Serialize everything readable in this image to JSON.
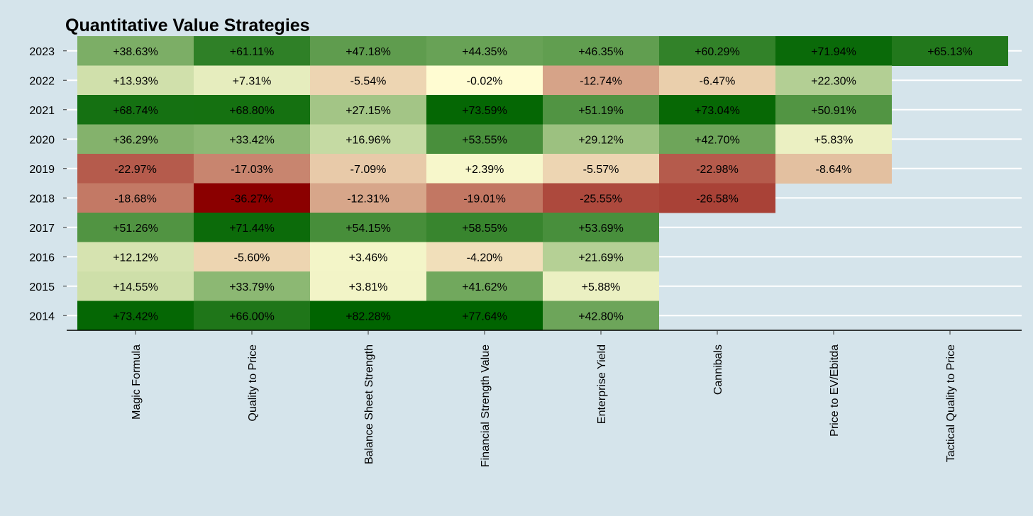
{
  "chart_data": {
    "type": "heatmap",
    "title": "Quantitative Value Strategies",
    "xlabel": "",
    "ylabel": "",
    "grid": true,
    "legend": "none",
    "categories": [
      "Magic Formula",
      "Quality to Price",
      "Balance Sheet Strength",
      "Financial Strength Value",
      "Enterprise Yield",
      "Cannibals",
      "Price to EV/Ebitda",
      "Tactical Quality to Price"
    ],
    "years": [
      "2023",
      "2022",
      "2021",
      "2020",
      "2019",
      "2018",
      "2017",
      "2016",
      "2015",
      "2014"
    ],
    "values": [
      [
        38.63,
        61.11,
        47.18,
        44.35,
        46.35,
        60.29,
        71.94,
        65.13
      ],
      [
        13.93,
        7.31,
        -5.54,
        -0.02,
        -12.74,
        -6.47,
        22.3,
        null
      ],
      [
        68.74,
        68.8,
        27.15,
        73.59,
        51.19,
        73.04,
        50.91,
        null
      ],
      [
        36.29,
        33.42,
        16.96,
        53.55,
        29.12,
        42.7,
        5.83,
        null
      ],
      [
        -22.97,
        -17.03,
        -7.09,
        2.39,
        -5.57,
        -22.98,
        -8.64,
        null
      ],
      [
        -18.68,
        -36.27,
        -12.31,
        -19.01,
        -25.55,
        -26.58,
        null,
        null
      ],
      [
        51.26,
        71.44,
        54.15,
        58.55,
        53.69,
        null,
        null,
        null
      ],
      [
        12.12,
        -5.6,
        3.46,
        -4.2,
        21.69,
        null,
        null,
        null
      ],
      [
        14.55,
        33.79,
        3.81,
        41.62,
        5.88,
        null,
        null,
        null
      ],
      [
        73.42,
        66.0,
        82.28,
        77.64,
        42.8,
        null,
        null,
        null
      ]
    ],
    "labels": [
      [
        "+38.63%",
        "+61.11%",
        "+47.18%",
        "+44.35%",
        "+46.35%",
        "+60.29%",
        "+71.94%",
        "+65.13%"
      ],
      [
        "+13.93%",
        "+7.31%",
        "-5.54%",
        "-0.02%",
        "-12.74%",
        "-6.47%",
        "+22.30%",
        null
      ],
      [
        "+68.74%",
        "+68.80%",
        "+27.15%",
        "+73.59%",
        "+51.19%",
        "+73.04%",
        "+50.91%",
        null
      ],
      [
        "+36.29%",
        "+33.42%",
        "+16.96%",
        "+53.55%",
        "+29.12%",
        "+42.70%",
        "+5.83%",
        null
      ],
      [
        "-22.97%",
        "-17.03%",
        "-7.09%",
        "+2.39%",
        "-5.57%",
        "-22.98%",
        "-8.64%",
        null
      ],
      [
        "-18.68%",
        "-36.27%",
        "-12.31%",
        "-19.01%",
        "-25.55%",
        "-26.58%",
        null,
        null
      ],
      [
        "+51.26%",
        "+71.44%",
        "+54.15%",
        "+58.55%",
        "+53.69%",
        null,
        null,
        null
      ],
      [
        "+12.12%",
        "-5.60%",
        "+3.46%",
        "-4.20%",
        "+21.69%",
        null,
        null,
        null
      ],
      [
        "+14.55%",
        "+33.79%",
        "+3.81%",
        "+41.62%",
        "+5.88%",
        null,
        null,
        null
      ],
      [
        "+73.42%",
        "+66.00%",
        "+82.28%",
        "+77.64%",
        "+42.80%",
        null,
        null,
        null
      ]
    ],
    "colors": {
      "background": "#d5e4eb",
      "gridline": "#ffffff",
      "negative_max": "#8b0000",
      "neutral": "#fffcd2",
      "positive_max": "#006400"
    }
  }
}
